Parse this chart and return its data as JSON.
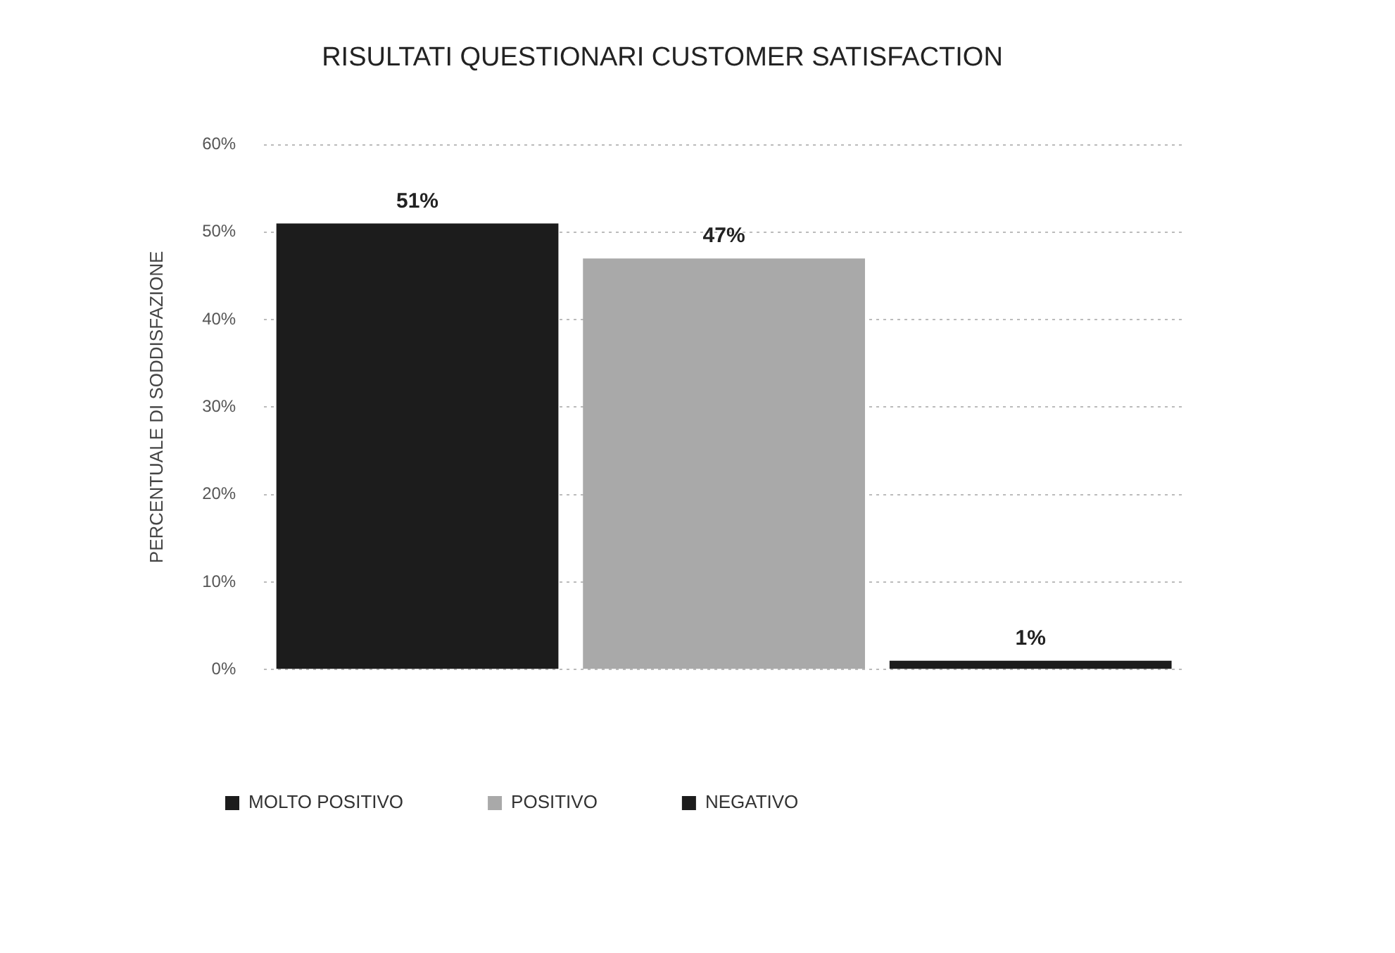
{
  "chart_data": {
    "type": "bar",
    "title": "RISULTATI QUESTIONARI CUSTOMER SATISFACTION",
    "ylabel": "PERCENTUALE DI SODDISFAZIONE",
    "categories": [
      null,
      null,
      null
    ],
    "series": [
      {
        "name": "MOLTO POSITIVO",
        "color": "#1c1c1c",
        "values": [
          51,
          null,
          null
        ],
        "value_labels": [
          "51%",
          null,
          null
        ]
      },
      {
        "name": "POSITIVO",
        "color": "#a9a9a9",
        "values": [
          null,
          47,
          null
        ],
        "value_labels": [
          null,
          "47%",
          null
        ]
      },
      {
        "name": "NEGATIVO",
        "color": "#1c1c1c",
        "values": [
          null,
          null,
          1
        ],
        "value_labels": [
          null,
          null,
          "1%"
        ]
      }
    ],
    "ylim": [
      0,
      60
    ],
    "yticks": [
      {
        "value": 0,
        "label": "0%"
      },
      {
        "value": 10,
        "label": "10%"
      },
      {
        "value": 20,
        "label": "20%"
      },
      {
        "value": 30,
        "label": "30%"
      },
      {
        "value": 40,
        "label": "40%"
      },
      {
        "value": 50,
        "label": "50%"
      },
      {
        "value": 60,
        "label": "60%"
      }
    ],
    "grid": "y",
    "legend": "bottom left"
  }
}
